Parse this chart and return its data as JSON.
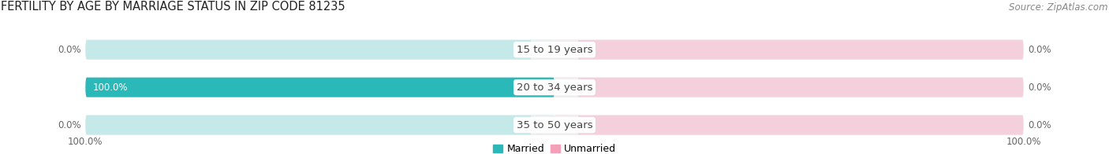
{
  "title": "FERTILITY BY AGE BY MARRIAGE STATUS IN ZIP CODE 81235",
  "source": "Source: ZipAtlas.com",
  "categories": [
    "15 to 19 years",
    "20 to 34 years",
    "35 to 50 years"
  ],
  "married_values": [
    0.0,
    100.0,
    0.0
  ],
  "unmarried_values": [
    0.0,
    0.0,
    0.0
  ],
  "married_color": "#2ab8b8",
  "married_light_color": "#c5e8e8",
  "unmarried_color": "#f4a0b8",
  "unmarried_light_color": "#f4d0dc",
  "bg_color": "#ffffff",
  "row_bg_color": "#efefef",
  "title_fontsize": 10.5,
  "label_fontsize": 9.5,
  "value_fontsize": 8.5,
  "source_fontsize": 8.5,
  "legend_fontsize": 9,
  "left_value_labels": [
    "0.0%",
    "100.0%",
    "0.0%"
  ],
  "right_value_labels": [
    "0.0%",
    "0.0%",
    "0.0%"
  ],
  "bottom_left_label": "100.0%",
  "bottom_right_label": "100.0%"
}
